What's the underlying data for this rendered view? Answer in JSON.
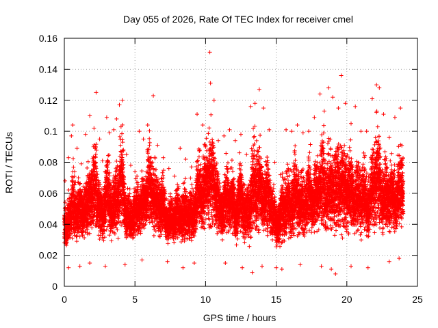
{
  "chart_data": {
    "type": "scatter",
    "title": "Day 055 of 2026, Rate Of TEC Index for receiver cmel",
    "xlabel": "GPS time / hours",
    "ylabel": "ROTI / TECUs",
    "xlim": [
      0,
      25
    ],
    "ylim": [
      0,
      0.16
    ],
    "x_ticks": [
      "0",
      "5",
      "10",
      "15",
      "20",
      "25"
    ],
    "y_ticks": [
      "0",
      "0.02",
      "0.04",
      "0.06",
      "0.08",
      "0.1",
      "0.12",
      "0.14",
      "0.16"
    ],
    "grid": true,
    "marker": "plus",
    "color": "#ff0000",
    "series": [
      {
        "x_range": [
          0,
          24
        ],
        "points": [
          [
            0.05,
            0.068
          ],
          [
            0.15,
            0.047
          ],
          [
            0.3,
            0.083
          ],
          [
            0.5,
            0.097
          ],
          [
            0.6,
            0.104
          ],
          [
            0.9,
            0.089
          ],
          [
            1.2,
            0.079
          ],
          [
            1.5,
            0.098
          ],
          [
            1.8,
            0.11
          ],
          [
            2.1,
            0.102
          ],
          [
            2.25,
            0.125
          ],
          [
            2.5,
            0.095
          ],
          [
            2.7,
            0.081
          ],
          [
            3.0,
            0.109
          ],
          [
            3.2,
            0.099
          ],
          [
            3.5,
            0.101
          ],
          [
            3.7,
            0.108
          ],
          [
            3.9,
            0.117
          ],
          [
            4.1,
            0.12
          ],
          [
            4.4,
            0.085
          ],
          [
            4.7,
            0.078
          ],
          [
            5.0,
            0.074
          ],
          [
            5.3,
            0.1
          ],
          [
            5.6,
            0.095
          ],
          [
            5.9,
            0.104
          ],
          [
            6.3,
            0.123
          ],
          [
            6.6,
            0.091
          ],
          [
            7.0,
            0.083
          ],
          [
            7.4,
            0.076
          ],
          [
            7.8,
            0.071
          ],
          [
            8.2,
            0.089
          ],
          [
            8.6,
            0.082
          ],
          [
            9.0,
            0.077
          ],
          [
            9.4,
            0.111
          ],
          [
            9.8,
            0.104
          ],
          [
            10.3,
            0.151
          ],
          [
            10.35,
            0.131
          ],
          [
            10.6,
            0.12
          ],
          [
            10.9,
            0.094
          ],
          [
            11.3,
            0.097
          ],
          [
            11.7,
            0.101
          ],
          [
            12.1,
            0.094
          ],
          [
            12.5,
            0.098
          ],
          [
            12.9,
            0.085
          ],
          [
            13.2,
            0.116
          ],
          [
            13.5,
            0.118
          ],
          [
            13.8,
            0.127
          ],
          [
            14.1,
            0.115
          ],
          [
            14.5,
            0.101
          ],
          [
            14.9,
            0.08
          ],
          [
            15.3,
            0.072
          ],
          [
            15.7,
            0.101
          ],
          [
            16.1,
            0.1
          ],
          [
            16.5,
            0.104
          ],
          [
            16.9,
            0.099
          ],
          [
            17.3,
            0.1
          ],
          [
            17.7,
            0.109
          ],
          [
            18.1,
            0.124
          ],
          [
            18.4,
            0.113
          ],
          [
            18.7,
            0.128
          ],
          [
            19.0,
            0.122
          ],
          [
            19.4,
            0.115
          ],
          [
            19.6,
            0.136
          ],
          [
            19.9,
            0.118
          ],
          [
            20.3,
            0.105
          ],
          [
            20.6,
            0.116
          ],
          [
            21.0,
            0.1
          ],
          [
            21.4,
            0.1
          ],
          [
            21.8,
            0.121
          ],
          [
            22.1,
            0.13
          ],
          [
            22.3,
            0.128
          ],
          [
            22.6,
            0.111
          ],
          [
            23.0,
            0.096
          ],
          [
            23.4,
            0.109
          ],
          [
            23.8,
            0.115
          ]
        ],
        "low_points": [
          [
            0.3,
            0.012
          ],
          [
            1.1,
            0.013
          ],
          [
            1.8,
            0.015
          ],
          [
            2.9,
            0.013
          ],
          [
            4.3,
            0.014
          ],
          [
            5.5,
            0.017
          ],
          [
            7.3,
            0.016
          ],
          [
            8.4,
            0.012
          ],
          [
            9.2,
            0.015
          ],
          [
            11.4,
            0.015
          ],
          [
            12.6,
            0.012
          ],
          [
            13.3,
            0.009
          ],
          [
            14.0,
            0.013
          ],
          [
            15.0,
            0.012
          ],
          [
            15.4,
            0.011
          ],
          [
            16.7,
            0.014
          ],
          [
            18.2,
            0.013
          ],
          [
            18.9,
            0.011
          ],
          [
            19.2,
            0.008
          ],
          [
            20.3,
            0.013
          ],
          [
            21.5,
            0.012
          ],
          [
            23.0,
            0.016
          ],
          [
            23.7,
            0.018
          ]
        ]
      }
    ]
  }
}
